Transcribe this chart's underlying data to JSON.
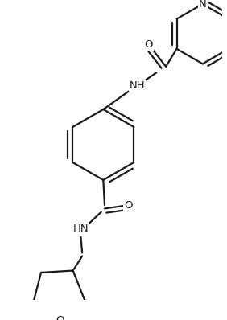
{
  "bg_color": "#ffffff",
  "line_color": "#1a1a1a",
  "lw": 1.6,
  "dbo": 0.055,
  "fs": 9.5,
  "xlim": [
    -1.6,
    1.6
  ],
  "ylim": [
    -2.3,
    2.1
  ]
}
